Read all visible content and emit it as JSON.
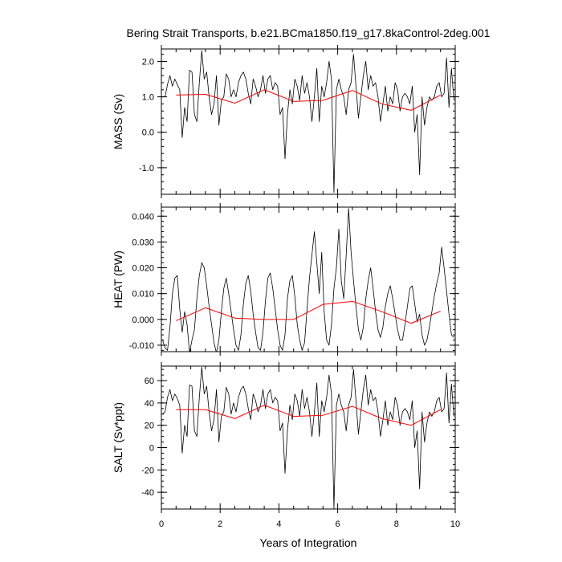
{
  "chart_data": {
    "type": "line",
    "title": "Bering Strait Transports, b.e21.BCma1850.f19_g17.8kaControl-2deg.001",
    "xlabel": "Years of Integration",
    "xlim": [
      0,
      10
    ],
    "xticks": [
      0,
      2,
      4,
      6,
      8,
      10
    ],
    "xtick_labels": [
      "0",
      "2",
      "4",
      "6",
      "8",
      "10"
    ],
    "colors": {
      "monthly": "#000000",
      "annual": "#ff0000",
      "frame": "#000000"
    },
    "panels": [
      {
        "id": "mass",
        "ylabel": "MASS (Sv)",
        "ylim": [
          -1.75,
          2.35
        ],
        "yticks": [
          -1.0,
          0.0,
          1.0,
          2.0
        ],
        "ytick_labels": [
          "-1.0",
          "0.0",
          "1.0",
          "2.0"
        ],
        "minor_step": 0.2,
        "series": [
          {
            "name": "monthly",
            "x_start": 0.042,
            "x_step": 0.0833,
            "values": [
              1.0,
              1.0,
              1.35,
              1.6,
              1.3,
              1.5,
              1.35,
              1.2,
              -0.15,
              0.7,
              0.3,
              1.75,
              1.7,
              0.5,
              0.3,
              1.4,
              2.3,
              1.5,
              1.7,
              1.0,
              0.5,
              0.8,
              1.6,
              0.2,
              0.9,
              1.0,
              1.65,
              1.5,
              1.0,
              1.2,
              1.0,
              1.4,
              1.6,
              1.7,
              1.5,
              1.1,
              0.8,
              1.5,
              1.3,
              1.0,
              1.2,
              1.6,
              1.1,
              1.5,
              1.6,
              1.2,
              1.4,
              1.3,
              0.5,
              0.7,
              -0.75,
              0.5,
              1.2,
              0.8,
              1.5,
              1.3,
              0.9,
              1.6,
              1.1,
              1.4,
              1.0,
              0.3,
              1.0,
              1.8,
              0.3,
              1.3,
              1.0,
              1.4,
              2.0,
              1.5,
              -1.7,
              1.2,
              1.5,
              1.2,
              1.0,
              0.5,
              1.2,
              1.4,
              2.2,
              1.3,
              0.4,
              1.0,
              1.6,
              2.0,
              1.2,
              1.6,
              1.3,
              1.4,
              1.0,
              0.3,
              0.8,
              1.3,
              0.6,
              1.0,
              0.8,
              1.4,
              1.2,
              0.6,
              1.0,
              1.1,
              1.0,
              0.8,
              1.3,
              0.0,
              0.5,
              -1.2,
              1.0,
              0.2,
              0.7,
              1.0,
              0.9,
              1.0,
              1.3,
              1.4,
              1.0,
              1.1,
              2.1,
              0.7,
              1.8,
              0.9
            ]
          },
          {
            "name": "annual",
            "x": [
              0.5,
              1.5,
              2.5,
              3.5,
              4.5,
              5.5,
              6.5,
              7.5,
              8.5,
              9.5
            ],
            "values": [
              1.05,
              1.07,
              0.82,
              1.2,
              0.87,
              0.9,
              1.18,
              0.8,
              0.62,
              1.05
            ]
          }
        ]
      },
      {
        "id": "heat",
        "ylabel": "HEAT (PW)",
        "ylim": [
          -0.0125,
          0.0435
        ],
        "yticks": [
          -0.01,
          0.0,
          0.01,
          0.02,
          0.03,
          0.04
        ],
        "ytick_labels": [
          "-0.010",
          "0.000",
          "0.010",
          "0.020",
          "0.030",
          "0.040"
        ],
        "minor_step": 0.002,
        "series": [
          {
            "name": "monthly",
            "x_start": 0.042,
            "x_step": 0.0833,
            "values": [
              -0.008,
              -0.011,
              -0.012,
              -0.003,
              0.01,
              0.016,
              0.017,
              0.004,
              -0.005,
              0.003,
              -0.002,
              -0.013,
              -0.008,
              -0.004,
              0.008,
              0.017,
              0.022,
              0.02,
              0.013,
              0.005,
              -0.002,
              -0.009,
              -0.013,
              -0.008,
              0.003,
              0.012,
              0.016,
              0.01,
              0.003,
              -0.004,
              -0.01,
              -0.012,
              -0.006,
              0.006,
              0.014,
              0.017,
              0.011,
              0.002,
              -0.005,
              -0.011,
              -0.012,
              -0.005,
              0.007,
              0.016,
              0.018,
              0.012,
              0.004,
              -0.004,
              -0.01,
              -0.012,
              -0.006,
              0.008,
              0.015,
              0.017,
              0.009,
              -0.002,
              -0.008,
              -0.012,
              -0.009,
              0.004,
              0.016,
              0.025,
              0.034,
              0.022,
              0.01,
              0.026,
              0.003,
              -0.008,
              -0.01,
              -0.002,
              0.012,
              0.02,
              0.035,
              0.015,
              0.008,
              0.025,
              0.043,
              0.026,
              0.015,
              0.005,
              -0.004,
              -0.008,
              -0.003,
              0.008,
              0.015,
              0.02,
              0.012,
              0.003,
              -0.004,
              -0.007,
              -0.003,
              0.005,
              0.01,
              0.013,
              0.008,
              0.002,
              -0.004,
              -0.008,
              -0.008,
              -0.002,
              0.005,
              0.012,
              0.013,
              0.006,
              -0.001,
              0.002,
              -0.006,
              -0.01,
              -0.008,
              -0.003,
              0.003,
              0.009,
              0.014,
              0.018,
              0.028,
              0.02,
              0.011,
              0.002,
              -0.006,
              -0.007
            ]
          },
          {
            "name": "annual",
            "x": [
              0.5,
              1.5,
              2.5,
              3.5,
              4.5,
              5.5,
              6.5,
              7.5,
              8.5,
              9.5
            ],
            "values": [
              -0.0005,
              0.0045,
              0.0005,
              0.0,
              0.0,
              0.0058,
              0.007,
              0.003,
              -0.0015,
              0.0032
            ]
          }
        ]
      },
      {
        "id": "salt",
        "ylabel": "SALT (Sv*ppt)",
        "ylim": [
          -55,
          73
        ],
        "yticks": [
          -40,
          -20,
          0,
          20,
          40,
          60
        ],
        "ytick_labels": [
          "-40",
          "-20",
          "0",
          "20",
          "40",
          "60"
        ],
        "minor_step": 5,
        "series": [
          {
            "name": "monthly",
            "x_start": 0.042,
            "x_step": 0.0833,
            "values": [
              30,
              32,
              45,
              52,
              42,
              48,
              44,
              38,
              -5,
              20,
              10,
              56,
              55,
              15,
              10,
              45,
              72,
              48,
              55,
              32,
              15,
              25,
              52,
              5,
              28,
              32,
              54,
              48,
              30,
              40,
              32,
              45,
              52,
              55,
              48,
              35,
              25,
              48,
              42,
              32,
              38,
              52,
              35,
              48,
              52,
              40,
              45,
              42,
              15,
              22,
              -23,
              15,
              38,
              25,
              48,
              42,
              28,
              52,
              35,
              45,
              32,
              10,
              32,
              58,
              10,
              42,
              32,
              45,
              65,
              48,
              -55,
              38,
              48,
              38,
              32,
              15,
              38,
              45,
              70,
              42,
              12,
              32,
              52,
              65,
              38,
              52,
              42,
              45,
              32,
              10,
              25,
              42,
              20,
              32,
              25,
              45,
              38,
              20,
              32,
              35,
              32,
              25,
              42,
              0,
              15,
              -37,
              32,
              5,
              22,
              32,
              28,
              32,
              42,
              45,
              32,
              35,
              67,
              22,
              57,
              28
            ]
          },
          {
            "name": "annual",
            "x": [
              0.5,
              1.5,
              2.5,
              3.5,
              4.5,
              5.5,
              6.5,
              7.5,
              8.5,
              9.5
            ],
            "values": [
              34,
              34,
              26,
              38,
              28,
              29,
              37,
              26,
              20,
              34
            ]
          }
        ]
      }
    ]
  }
}
